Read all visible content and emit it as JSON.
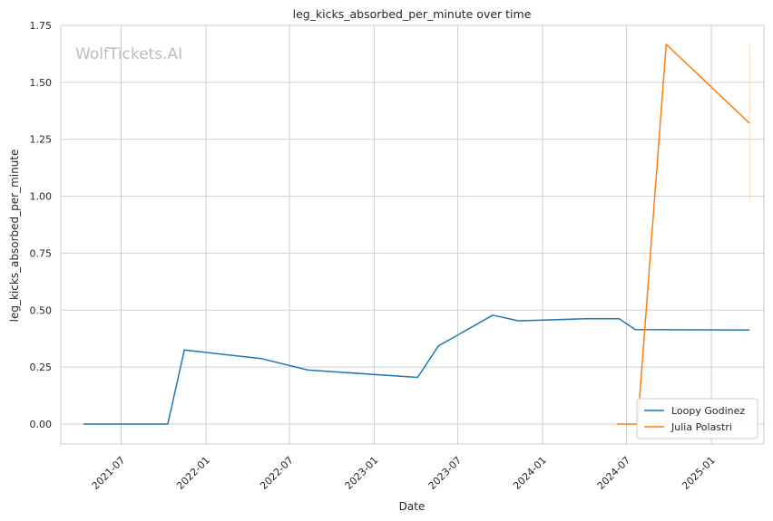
{
  "chart_data": {
    "type": "line",
    "title": "leg_kicks_absorbed_per_minute over time",
    "xlabel": "Date",
    "ylabel": "leg_kicks_absorbed_per_minute",
    "watermark": "WolfTickets.AI",
    "xlim": [
      "2021-02-20",
      "2025-04-25"
    ],
    "ylim": [
      -0.0875,
      1.75
    ],
    "x_ticks": [
      "2021-07",
      "2022-01",
      "2022-07",
      "2023-01",
      "2023-07",
      "2024-01",
      "2024-07",
      "2025-01"
    ],
    "y_ticks": [
      "0.00",
      "0.25",
      "0.50",
      "0.75",
      "1.00",
      "1.25",
      "1.50",
      "1.75"
    ],
    "grid": true,
    "legend_position": "bottom-right",
    "series": [
      {
        "name": "Loopy Godinez",
        "color": "#1f77b4",
        "points": [
          {
            "x": "2021-04-10",
            "y": 0.0
          },
          {
            "x": "2021-10-10",
            "y": 0.0
          },
          {
            "x": "2021-11-15",
            "y": 0.325
          },
          {
            "x": "2022-05-01",
            "y": 0.287
          },
          {
            "x": "2022-08-10",
            "y": 0.237
          },
          {
            "x": "2023-04-05",
            "y": 0.205
          },
          {
            "x": "2023-05-20",
            "y": 0.343
          },
          {
            "x": "2023-09-15",
            "y": 0.478
          },
          {
            "x": "2023-11-10",
            "y": 0.453
          },
          {
            "x": "2024-04-01",
            "y": 0.462
          },
          {
            "x": "2024-06-15",
            "y": 0.462
          },
          {
            "x": "2024-07-20",
            "y": 0.415
          },
          {
            "x": "2025-03-25",
            "y": 0.413
          }
        ]
      },
      {
        "name": "Julia Polastri",
        "color": "#ff7f0e",
        "points": [
          {
            "x": "2024-06-10",
            "y": 0.0
          },
          {
            "x": "2024-07-25",
            "y": 0.0
          },
          {
            "x": "2024-09-25",
            "y": 1.667
          },
          {
            "x": "2025-03-25",
            "y": 1.32
          }
        ],
        "error_band": {
          "x": "2025-03-25",
          "low": 0.97,
          "high": 1.667
        }
      }
    ]
  }
}
